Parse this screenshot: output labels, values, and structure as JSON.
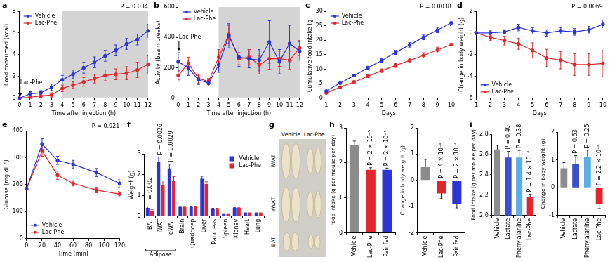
{
  "chart_data": [
    {
      "panel": "a",
      "type": "line",
      "marker": "circle",
      "grid": false,
      "legend": "top-left",
      "x_label": "Time after injection (h)",
      "y_label": "Food consumed (kcal)",
      "x": [
        0,
        1,
        2,
        3,
        4,
        5,
        6,
        7,
        8,
        9,
        10,
        11,
        12
      ],
      "xlim": [
        0,
        12
      ],
      "xticks": [
        0,
        1,
        2,
        3,
        4,
        5,
        6,
        7,
        8,
        9,
        10,
        11,
        12
      ],
      "ylim": [
        0,
        8
      ],
      "yticks": [
        0,
        2,
        4,
        6,
        8
      ],
      "shaded": [
        4,
        12
      ],
      "p_value": "P = 0.034",
      "annotations": [
        {
          "text": "Lac-Phe",
          "x": 0
        }
      ],
      "series": [
        {
          "name": "Vehicle",
          "color": "#2b35d6",
          "values": [
            0,
            0.4,
            0.5,
            1.0,
            1.7,
            2.2,
            2.8,
            3.3,
            3.9,
            4.4,
            5.0,
            5.4,
            6.2
          ],
          "errors": [
            0,
            0.2,
            0.2,
            0.3,
            0.4,
            0.4,
            0.5,
            0.5,
            0.5,
            0.5,
            0.5,
            0.5,
            0.6
          ]
        },
        {
          "name": "Lac-Phe",
          "color": "#e3262b",
          "values": [
            0,
            0.1,
            0.2,
            0.3,
            0.9,
            1.2,
            1.5,
            1.8,
            2.1,
            2.2,
            2.3,
            2.6,
            3.1
          ],
          "errors": [
            0,
            0.1,
            0.1,
            0.2,
            0.3,
            0.3,
            0.4,
            0.4,
            0.5,
            0.5,
            0.6,
            0.7,
            0.8
          ]
        }
      ]
    },
    {
      "panel": "b",
      "type": "line",
      "marker": "circle",
      "grid": false,
      "legend": "top-left",
      "x_label": "Time after injection (h)",
      "y_label": "Activity (beam breaks)",
      "x": [
        0,
        1,
        2,
        3,
        4,
        5,
        6,
        7,
        8,
        9,
        10,
        11,
        12
      ],
      "xlim": [
        0,
        12
      ],
      "xticks": [
        0,
        1,
        2,
        3,
        4,
        5,
        6,
        7,
        8,
        9,
        10,
        11,
        12
      ],
      "ylim": [
        0,
        600
      ],
      "yticks": [
        0,
        200,
        400,
        600
      ],
      "shaded": [
        4,
        12
      ],
      "annotations": [
        {
          "text": "Lac-Phe",
          "x": 0
        }
      ],
      "series": [
        {
          "name": "Vehicle",
          "color": "#2b35d6",
          "values": [
            240,
            200,
            120,
            100,
            220,
            410,
            270,
            260,
            250,
            370,
            240,
            360,
            310
          ],
          "errors": [
            60,
            50,
            30,
            20,
            50,
            80,
            60,
            60,
            70,
            140,
            80,
            120,
            60
          ]
        },
        {
          "name": "Lac-Phe",
          "color": "#e3262b",
          "values": [
            150,
            230,
            130,
            110,
            270,
            420,
            260,
            270,
            220,
            260,
            260,
            250,
            330
          ],
          "errors": [
            30,
            40,
            30,
            20,
            50,
            60,
            40,
            50,
            60,
            70,
            50,
            60,
            50
          ]
        }
      ]
    },
    {
      "panel": "c",
      "type": "line",
      "marker": "circle",
      "grid": false,
      "legend": "top-left",
      "x_label": "Days",
      "y_label": "Cumulative food intake (g)",
      "x": [
        1,
        2,
        3,
        4,
        5,
        6,
        7,
        8,
        9,
        10
      ],
      "xlim": [
        1,
        10
      ],
      "xticks": [
        1,
        2,
        3,
        4,
        5,
        6,
        7,
        8,
        9,
        10
      ],
      "ylim": [
        0,
        30
      ],
      "yticks": [
        0,
        5,
        10,
        15,
        20,
        25,
        30
      ],
      "p_value": "P = 0.0038",
      "series": [
        {
          "name": "Vehicle",
          "color": "#2b35d6",
          "values": [
            2.5,
            5.2,
            7.8,
            10.5,
            13,
            15.8,
            18.4,
            21,
            23.5,
            26
          ],
          "errors": [
            0.2,
            0.3,
            0.4,
            0.5,
            0.6,
            0.7,
            0.8,
            0.8,
            0.9,
            1.0
          ]
        },
        {
          "name": "Lac-Phe",
          "color": "#e3262b",
          "values": [
            1.8,
            3.8,
            5.6,
            7.6,
            9.5,
            11.3,
            13,
            14.8,
            16.6,
            18.5
          ],
          "errors": [
            0.2,
            0.3,
            0.4,
            0.5,
            0.6,
            0.7,
            0.8,
            0.9,
            1.0,
            1.2
          ]
        }
      ]
    },
    {
      "panel": "d",
      "type": "line",
      "marker": "circle",
      "grid": false,
      "legend": "bottom-left",
      "x_label": "Days",
      "y_label": "Change in body weight (g)",
      "x": [
        1,
        2,
        3,
        4,
        5,
        6,
        7,
        8,
        9,
        10
      ],
      "xlim": [
        1,
        10
      ],
      "xticks": [
        1,
        2,
        3,
        4,
        5,
        6,
        7,
        8,
        9,
        10
      ],
      "ylim": [
        -6,
        2
      ],
      "yticks": [
        -6,
        -4,
        -2,
        0,
        2
      ],
      "p_value": "P = 0.0069",
      "series": [
        {
          "name": "Vehicle",
          "color": "#2b35d6",
          "values": [
            0,
            0,
            0.1,
            0.5,
            0.2,
            0,
            0.2,
            0.1,
            0.3,
            0.8
          ],
          "errors": [
            0.1,
            0.2,
            0.2,
            0.3,
            0.3,
            0.3,
            0.3,
            0.3,
            0.3,
            0.3
          ]
        },
        {
          "name": "Lac-Phe",
          "color": "#e3262b",
          "values": [
            0,
            -0.4,
            -0.7,
            -1.0,
            -1.6,
            -2.3,
            -2.5,
            -2.9,
            -2.9,
            -2.8
          ],
          "errors": [
            0.1,
            0.3,
            0.4,
            0.5,
            0.7,
            0.8,
            0.8,
            1.0,
            1.0,
            1.2
          ]
        }
      ]
    },
    {
      "panel": "e",
      "type": "line",
      "marker": "circle",
      "grid": false,
      "legend": "bottom-left",
      "x_label": "Time (min)",
      "y_label": "Glucose (mg dl⁻¹)",
      "x": [
        0,
        20,
        40,
        60,
        90,
        120
      ],
      "xlim": [
        0,
        120
      ],
      "xticks": [
        0,
        20,
        40,
        60,
        80,
        100,
        120
      ],
      "ylim": [
        0,
        400
      ],
      "yticks": [
        0,
        100,
        200,
        300,
        400
      ],
      "p_value": "P = 0.021",
      "series": [
        {
          "name": "Vehicle",
          "color": "#2b35d6",
          "values": [
            185,
            350,
            290,
            275,
            245,
            205
          ],
          "errors": [
            0,
            20,
            15,
            15,
            15,
            15
          ]
        },
        {
          "name": "Lac-Phe",
          "color": "#e3262b",
          "values": [
            185,
            325,
            235,
            205,
            180,
            165
          ],
          "errors": [
            0,
            20,
            15,
            10,
            10,
            10
          ]
        }
      ]
    },
    {
      "panel": "f",
      "type": "bar",
      "grid": false,
      "legend": "top-right",
      "y_label": "Weight (g)",
      "categories": [
        "BAT",
        "iWAT",
        "eWAT",
        "Brain",
        "Quadricep",
        "Liver",
        "Pancreas",
        "Spleen",
        "Kidney",
        "Heart",
        "Lung"
      ],
      "ylim": [
        0,
        3
      ],
      "yticks": [
        0,
        1,
        2,
        3
      ],
      "group": {
        "label": "Adipose",
        "categories": [
          "BAT",
          "iWAT",
          "eWAT"
        ]
      },
      "p_values": [
        "P = 0.002",
        "P = 0.0026",
        "P = 0.0029",
        null,
        null,
        null,
        null,
        null,
        null,
        null,
        null
      ],
      "series": [
        {
          "name": "Vehicle",
          "color": "#2b35d6",
          "values": [
            0.4,
            2.6,
            2.3,
            0.45,
            0.45,
            1.8,
            0.35,
            0.1,
            0.4,
            0.15,
            0.15
          ],
          "errors": [
            0.05,
            0.25,
            0.2,
            0.02,
            0.03,
            0.12,
            0.03,
            0.02,
            0.02,
            0.01,
            0.01
          ]
        },
        {
          "name": "Lac-Phe",
          "color": "#e3262b",
          "values": [
            0.25,
            1.5,
            1.7,
            0.45,
            0.45,
            1.55,
            0.35,
            0.1,
            0.4,
            0.15,
            0.15
          ],
          "errors": [
            0.05,
            0.2,
            0.2,
            0.02,
            0.03,
            0.1,
            0.03,
            0.02,
            0.02,
            0.01,
            0.01
          ]
        }
      ]
    },
    {
      "panel": "g",
      "type": "image",
      "columns": [
        "Vehicle",
        "Lac-Phe"
      ],
      "rows": [
        "iWAT",
        "eWAT",
        "BAT"
      ]
    },
    {
      "panel": "h",
      "type": "bar",
      "grid": false,
      "y_label": "Food intake (g per mouse per day)",
      "categories": [
        "Vehicle",
        "Lac-Phe",
        "Pair fed"
      ],
      "values": [
        2.5,
        1.8,
        1.8
      ],
      "errors": [
        0.12,
        0.06,
        0.05
      ],
      "colors": [
        "#8c8c8c",
        "#e3262b",
        "#2b35d6"
      ],
      "p_values": [
        null,
        "P = 2 × 10⁻⁵",
        "P = 2 × 10⁻⁵"
      ],
      "ylim": [
        0,
        3
      ],
      "yticks": [
        0,
        1,
        2,
        3
      ]
    },
    {
      "type": "bar",
      "grid": false,
      "y_label": "Change in body weight (g)",
      "categories": [
        "Vehicle",
        "Lac-Phe",
        "Pair fed"
      ],
      "values": [
        0.5,
        -0.5,
        -0.9
      ],
      "errors": [
        0.3,
        0.2,
        0.15
      ],
      "colors": [
        "#8c8c8c",
        "#e3262b",
        "#2b35d6"
      ],
      "p_values": [
        null,
        "P = 4 × 10⁻⁴",
        "P = 2 × 10⁻⁴"
      ],
      "ylim": [
        -2,
        2
      ],
      "yticks": [
        -2,
        -1,
        0,
        1,
        2
      ]
    },
    {
      "panel": "i",
      "type": "bar",
      "grid": false,
      "y_label": "Food intake (g per mouse per day)",
      "categories": [
        "Vehicle",
        "Lactate",
        "Phenylalanine",
        "Lac-Phe"
      ],
      "values": [
        2.65,
        2.57,
        2.57,
        2.18
      ],
      "errors": [
        0.04,
        0.06,
        0.07,
        0.03
      ],
      "colors": [
        "#8c8c8c",
        "#3a50c8",
        "#5aaee8",
        "#e3262b"
      ],
      "p_values": [
        null,
        "P = 0.40",
        "P = 0.38",
        "P = 1.4 × 10⁻⁴"
      ],
      "ylim": [
        2,
        2.8
      ],
      "yticks": [
        {
          "value": 2,
          "label": "2.0"
        },
        2.2,
        2.4,
        2.6,
        2.8
      ]
    },
    {
      "type": "bar",
      "grid": false,
      "y_label": "Change in body weight (g)",
      "categories": [
        "Vehicle",
        "Lactate",
        "Phenylalanine",
        "Lac-Phe"
      ],
      "values": [
        0.7,
        0.85,
        1.1,
        -0.6
      ],
      "errors": [
        0.2,
        0.3,
        0.25,
        0.15
      ],
      "colors": [
        "#8c8c8c",
        "#3a50c8",
        "#5aaee8",
        "#e3262b"
      ],
      "p_values": [
        null,
        "P = 0.63",
        "P = 0.25",
        "P = 2.2 × 10⁻⁴"
      ],
      "ylim": [
        -1,
        2
      ],
      "yticks": [
        -1,
        0,
        1,
        2
      ]
    }
  ]
}
